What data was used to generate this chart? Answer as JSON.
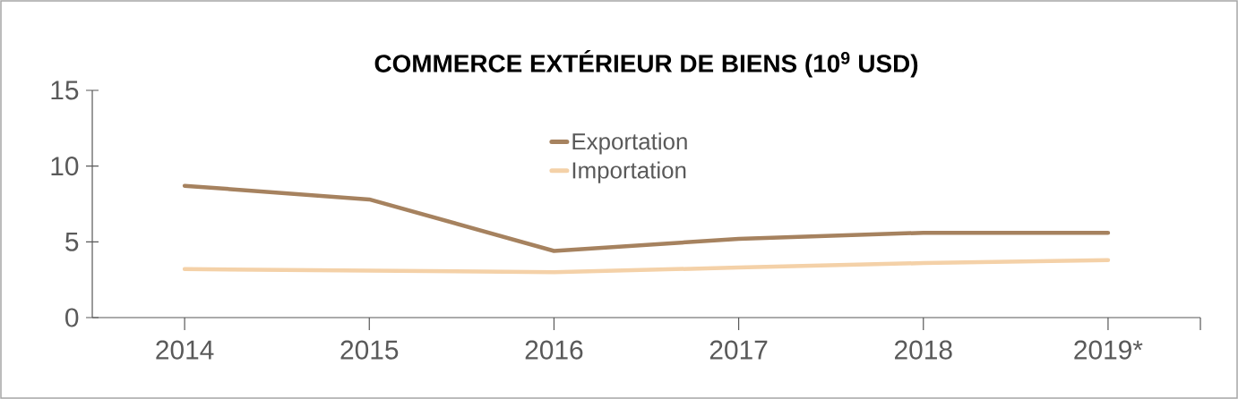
{
  "chart_data": {
    "type": "line",
    "title": "COMMERCE EXTÉRIEUR DE BIENS (10$^{9}$ USD)",
    "categories": [
      "2014",
      "2015",
      "2016",
      "2017",
      "2018",
      "2019*"
    ],
    "series": [
      {
        "name": "Exportation",
        "color": "#a6825f",
        "values": [
          8.7,
          7.8,
          4.4,
          5.2,
          5.6,
          5.6
        ]
      },
      {
        "name": "Importation",
        "color": "#f4d1a8",
        "values": [
          3.2,
          3.1,
          3.0,
          3.3,
          3.6,
          3.8
        ]
      }
    ],
    "ylim": [
      0,
      15
    ],
    "yticks": [
      0,
      5,
      10,
      15
    ],
    "legend": "top",
    "grid": false,
    "marker": "none",
    "line_style": "solid"
  }
}
